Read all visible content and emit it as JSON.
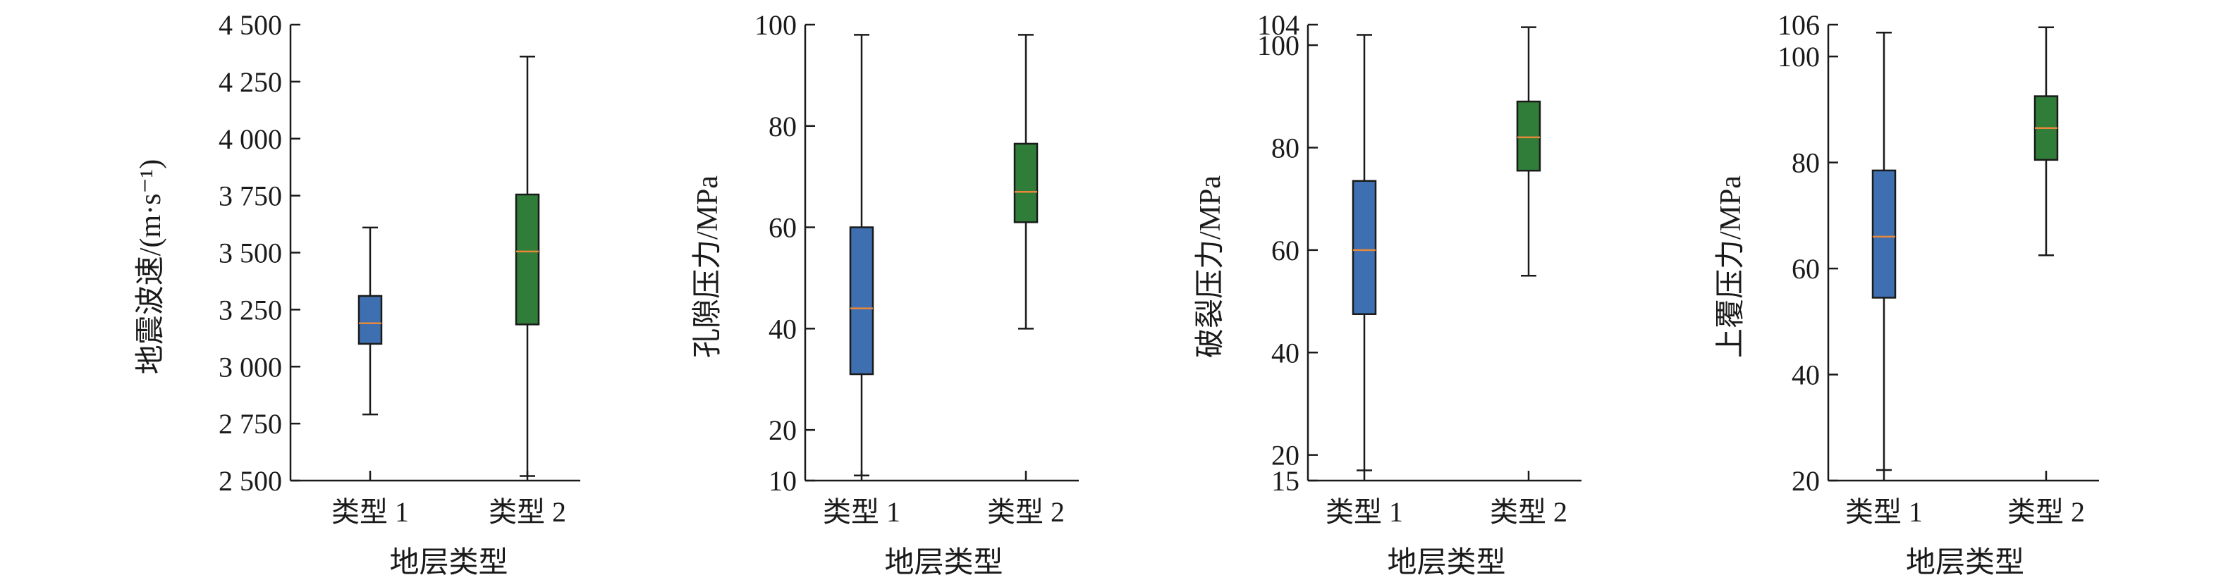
{
  "chart_data": [
    {
      "type": "box",
      "ylabel": "地震波速/(m·s⁻¹)",
      "xlabel": "地层类型",
      "categories": [
        "类型 1",
        "类型 2"
      ],
      "yticks": [
        2500,
        2750,
        3000,
        3250,
        3500,
        3750,
        4000,
        4250,
        4500
      ],
      "ytick_labels": [
        "2 500",
        "2 750",
        "3 000",
        "3 250",
        "3 500",
        "3 750",
        "4 000",
        "4 250",
        "4 500"
      ],
      "ylim": [
        2500,
        4500
      ],
      "boxes": [
        {
          "whisker_low": 2790,
          "q1": 3100,
          "median": 3190,
          "q3": 3310,
          "whisker_high": 3610,
          "color": "#3e6fb0"
        },
        {
          "whisker_low": 2520,
          "q1": 3185,
          "median": 3505,
          "q3": 3755,
          "whisker_high": 4360,
          "color": "#2f7d39"
        }
      ]
    },
    {
      "type": "box",
      "ylabel": "孔隙压力/MPa",
      "xlabel": "地层类型",
      "categories": [
        "类型 1",
        "类型 2"
      ],
      "yticks": [
        10,
        20,
        40,
        60,
        80,
        100
      ],
      "ytick_labels": [
        "10",
        "20",
        "40",
        "60",
        "80",
        "100"
      ],
      "ylim": [
        10,
        100
      ],
      "boxes": [
        {
          "whisker_low": 11,
          "q1": 31,
          "median": 44,
          "q3": 60,
          "whisker_high": 98,
          "color": "#3e6fb0"
        },
        {
          "whisker_low": 40,
          "q1": 61,
          "median": 67,
          "q3": 76.5,
          "whisker_high": 98,
          "color": "#2f7d39"
        }
      ]
    },
    {
      "type": "box",
      "ylabel": "破裂压力/MPa",
      "xlabel": "地层类型",
      "categories": [
        "类型 1",
        "类型 2"
      ],
      "yticks": [
        15,
        20,
        40,
        60,
        80,
        100,
        104
      ],
      "ytick_labels": [
        "15",
        "20",
        "40",
        "60",
        "80",
        "100",
        "104"
      ],
      "ylim": [
        15,
        104
      ],
      "boxes": [
        {
          "whisker_low": 17,
          "q1": 47.5,
          "median": 60,
          "q3": 73.5,
          "whisker_high": 102,
          "color": "#3e6fb0"
        },
        {
          "whisker_low": 55,
          "q1": 75.5,
          "median": 82,
          "q3": 89,
          "whisker_high": 103.5,
          "color": "#2f7d39"
        }
      ]
    },
    {
      "type": "box",
      "ylabel": "上覆压力/MPa",
      "xlabel": "地层类型",
      "categories": [
        "类型 1",
        "类型 2"
      ],
      "yticks": [
        20,
        40,
        60,
        80,
        100,
        106
      ],
      "ytick_labels": [
        "20",
        "40",
        "60",
        "80",
        "100",
        "106"
      ],
      "ylim": [
        20,
        106
      ],
      "boxes": [
        {
          "whisker_low": 22,
          "q1": 54.5,
          "median": 66,
          "q3": 78.5,
          "whisker_high": 104.5,
          "color": "#3e6fb0"
        },
        {
          "whisker_low": 62.5,
          "q1": 80.5,
          "median": 86.5,
          "q3": 92.5,
          "whisker_high": 105.5,
          "color": "#2f7d39"
        }
      ]
    }
  ],
  "style": {
    "median_color": "#e8883a",
    "axis_color": "#1a1a1a",
    "box_outline": "#1a1a1a"
  }
}
